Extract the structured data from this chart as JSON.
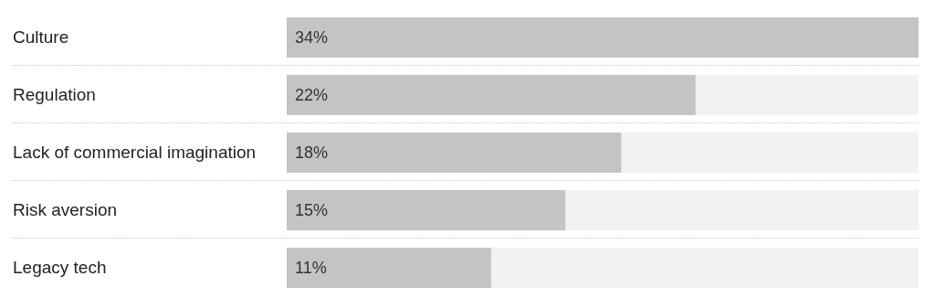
{
  "chart_data": {
    "type": "bar",
    "orientation": "horizontal",
    "categories": [
      "Culture",
      "Regulation",
      "Lack of commercial imagination",
      "Risk aversion",
      "Legacy tech"
    ],
    "values": [
      34,
      22,
      18,
      15,
      11
    ],
    "value_labels": [
      "34%",
      "22%",
      "18%",
      "15%",
      "11%"
    ],
    "color": "#c4c4c4",
    "xlim": [
      0,
      34
    ],
    "tick_labels": "y"
  }
}
